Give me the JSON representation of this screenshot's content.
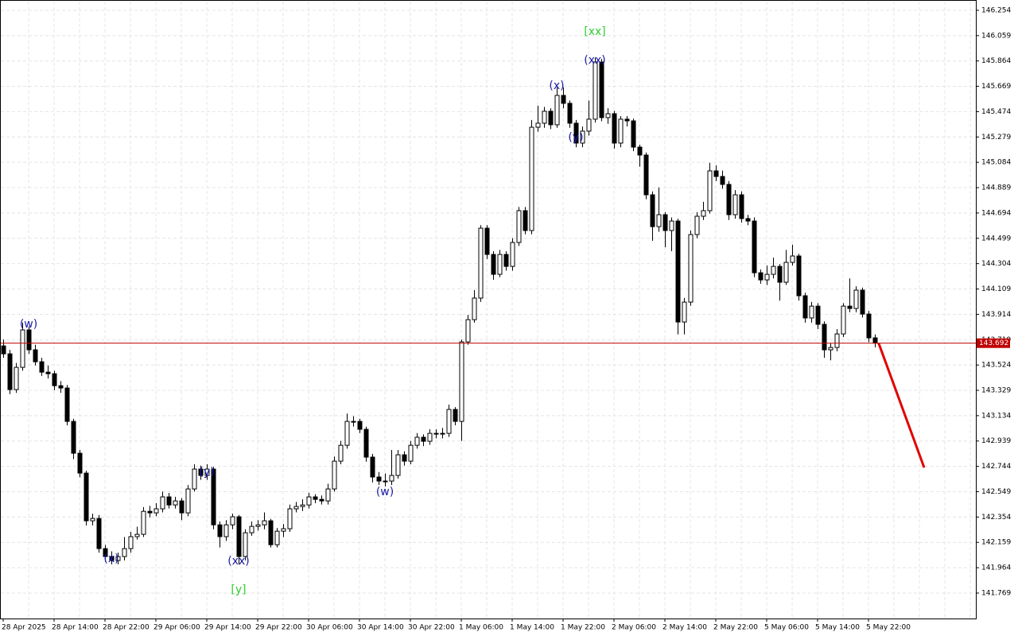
{
  "chart_data": {
    "type": "candlestick",
    "categories": [
      "28 Apr 2025",
      null,
      null,
      null,
      null,
      null,
      null,
      null,
      "28 Apr 14:00",
      null,
      null,
      null,
      null,
      null,
      null,
      null,
      "28 Apr 22:00",
      null,
      null,
      null,
      null,
      null,
      null,
      null,
      "29 Apr 06:00",
      null,
      null,
      null,
      null,
      null,
      null,
      null,
      "29 Apr 14:00",
      null,
      null,
      null,
      null,
      null,
      null,
      null,
      "29 Apr 22:00",
      null,
      null,
      null,
      null,
      null,
      null,
      null,
      "30 Apr 06:00",
      null,
      null,
      null,
      null,
      null,
      null,
      null,
      "30 Apr 14:00",
      null,
      null,
      null,
      null,
      null,
      null,
      null,
      "30 Apr 22:00",
      null,
      null,
      null,
      null,
      null,
      null,
      null,
      "1 May 06:00",
      null,
      null,
      null,
      null,
      null,
      null,
      null,
      "1 May 14:00",
      null,
      null,
      null,
      null,
      null,
      null,
      null,
      "1 May 22:00",
      null,
      null,
      null,
      null,
      null,
      null,
      null,
      "2 May 06:00",
      null,
      null,
      null,
      null,
      null,
      null,
      null,
      "2 May 14:00",
      null,
      null,
      null,
      null,
      null,
      null,
      null,
      "2 May 22:00",
      null,
      null,
      null,
      null,
      null,
      null,
      null,
      "5 May 06:00",
      null,
      null,
      null,
      null,
      null,
      null,
      null,
      "5 May 14:00",
      null,
      null,
      null,
      null,
      null,
      null,
      null,
      "5 May 22:00",
      null
    ],
    "open": [
      143.671,
      143.61,
      143.335,
      143.506,
      143.794,
      143.641,
      143.549,
      143.469,
      143.457,
      143.365,
      143.347,
      143.09,
      142.845,
      142.692,
      142.325,
      142.343,
      142.111,
      142.05,
      142.019,
      142.05,
      142.111,
      142.203,
      142.221,
      142.398,
      142.386,
      142.417,
      142.509,
      142.447,
      142.478,
      142.386,
      142.57,
      142.723,
      142.674,
      142.723,
      142.294,
      142.203,
      142.294,
      142.356,
      142.05,
      142.233,
      142.282,
      142.294,
      142.325,
      142.141,
      142.245,
      142.264,
      142.417,
      142.435,
      142.447,
      142.509,
      142.49,
      142.478,
      142.57,
      142.784,
      142.906,
      143.09,
      143.09,
      143.029,
      142.815,
      142.662,
      142.631,
      142.631,
      142.674,
      142.833,
      142.784,
      142.906,
      142.968,
      142.937,
      142.998,
      142.998,
      142.998,
      143.182,
      143.09,
      143.702,
      143.873,
      144.039,
      144.577,
      144.375,
      144.222,
      144.375,
      144.283,
      144.467,
      144.712,
      144.559,
      145.354,
      145.385,
      145.477,
      145.373,
      145.599,
      145.538,
      145.385,
      145.232,
      145.324,
      145.416,
      145.856,
      145.428,
      145.458,
      145.232,
      145.416,
      145.403,
      145.201,
      145.14,
      144.834,
      144.589,
      144.681,
      144.559,
      144.632,
      143.855,
      144.008,
      144.528,
      144.669,
      144.712,
      145.018,
      144.975,
      144.914,
      144.681,
      144.834,
      144.651,
      144.632,
      144.234,
      144.179,
      144.222,
      144.283,
      144.161,
      144.314,
      144.363,
      144.057,
      143.886,
      143.977,
      143.837,
      143.641,
      143.659,
      143.763,
      143.977,
      143.959,
      144.1,
      143.916,
      143.733
    ],
    "high": [
      143.72,
      143.64,
      143.54,
      143.85,
      143.82,
      143.68,
      143.58,
      143.52,
      143.48,
      143.4,
      143.37,
      143.11,
      142.87,
      142.71,
      142.38,
      142.37,
      142.14,
      142.09,
      142.08,
      142.2,
      142.24,
      142.28,
      142.43,
      142.44,
      142.46,
      142.55,
      142.54,
      142.51,
      142.5,
      142.6,
      142.76,
      142.75,
      142.76,
      142.74,
      142.32,
      142.33,
      142.38,
      142.37,
      142.26,
      142.32,
      142.33,
      142.39,
      142.34,
      142.27,
      142.3,
      142.45,
      142.47,
      142.49,
      142.54,
      142.53,
      142.52,
      142.61,
      142.82,
      142.94,
      143.15,
      143.13,
      143.11,
      143.05,
      142.84,
      142.7,
      142.69,
      142.87,
      142.87,
      142.86,
      142.94,
      143.0,
      142.99,
      143.03,
      143.03,
      143.04,
      143.22,
      143.2,
      143.72,
      143.91,
      144.1,
      144.6,
      144.6,
      144.4,
      144.41,
      144.4,
      144.5,
      144.74,
      144.74,
      145.41,
      145.52,
      145.51,
      145.5,
      145.66,
      145.66,
      145.56,
      145.41,
      145.36,
      145.56,
      145.89,
      145.88,
      145.5,
      145.48,
      145.44,
      145.44,
      145.42,
      145.22,
      145.16,
      144.86,
      144.89,
      144.7,
      144.66,
      144.65,
      144.04,
      144.56,
      144.7,
      144.78,
      145.08,
      145.06,
      145.02,
      144.94,
      144.87,
      144.86,
      144.68,
      144.66,
      144.26,
      144.29,
      144.35,
      144.3,
      144.41,
      144.45,
      144.38,
      144.08,
      144.01,
      144.0,
      143.86,
      143.69,
      143.8,
      144.0,
      144.19,
      144.13,
      144.12,
      143.94,
      143.76
    ],
    "low": [
      143.58,
      143.3,
      143.31,
      143.48,
      143.61,
      143.52,
      143.44,
      143.42,
      143.33,
      143.31,
      143.06,
      142.8,
      142.66,
      142.29,
      142.29,
      142.08,
      142.01,
      141.99,
      141.99,
      142.02,
      142.08,
      142.18,
      142.2,
      142.35,
      142.36,
      142.39,
      142.42,
      142.42,
      142.33,
      142.36,
      142.55,
      142.64,
      142.64,
      142.26,
      142.12,
      142.17,
      142.26,
      141.99,
      142.02,
      142.21,
      142.25,
      142.26,
      142.12,
      142.12,
      142.2,
      142.24,
      142.39,
      142.4,
      142.42,
      142.46,
      142.45,
      142.45,
      142.55,
      142.76,
      142.88,
      143.05,
      143.0,
      142.78,
      142.62,
      142.6,
      142.59,
      142.6,
      142.65,
      142.75,
      142.76,
      142.88,
      142.9,
      142.91,
      142.96,
      142.96,
      142.97,
      143.06,
      142.94,
      143.68,
      143.85,
      144.01,
      144.34,
      144.18,
      144.2,
      144.25,
      144.25,
      144.44,
      144.53,
      144.53,
      145.32,
      145.35,
      145.34,
      145.35,
      145.5,
      145.35,
      145.2,
      145.2,
      145.29,
      145.39,
      145.4,
      145.38,
      145.19,
      145.2,
      145.36,
      145.17,
      145.05,
      144.8,
      144.48,
      144.55,
      144.43,
      144.4,
      143.76,
      143.76,
      143.98,
      144.5,
      144.64,
      144.69,
      144.94,
      144.88,
      144.64,
      144.65,
      144.62,
      144.6,
      144.2,
      144.15,
      144.14,
      144.19,
      144.02,
      144.14,
      144.29,
      144.02,
      143.85,
      143.85,
      143.8,
      143.58,
      143.56,
      143.63,
      143.74,
      143.93,
      143.93,
      143.89,
      143.7,
      143.66
    ],
    "close": [
      143.61,
      143.335,
      143.506,
      143.794,
      143.641,
      143.549,
      143.469,
      143.457,
      143.365,
      143.347,
      143.09,
      142.845,
      142.692,
      142.325,
      142.343,
      142.111,
      142.05,
      142.019,
      142.05,
      142.111,
      142.203,
      142.221,
      142.398,
      142.386,
      142.417,
      142.509,
      142.447,
      142.478,
      142.386,
      142.57,
      142.723,
      142.674,
      142.723,
      142.294,
      142.203,
      142.294,
      142.356,
      142.05,
      142.233,
      142.282,
      142.294,
      142.325,
      142.141,
      142.245,
      142.264,
      142.417,
      142.435,
      142.447,
      142.509,
      142.49,
      142.478,
      142.57,
      142.784,
      142.906,
      143.09,
      143.09,
      143.029,
      142.815,
      142.662,
      142.631,
      142.631,
      142.674,
      142.833,
      142.784,
      142.906,
      142.968,
      142.937,
      142.998,
      142.998,
      142.998,
      143.182,
      143.09,
      143.702,
      143.873,
      144.039,
      144.577,
      144.375,
      144.222,
      144.375,
      144.283,
      144.467,
      144.712,
      144.559,
      145.354,
      145.385,
      145.477,
      145.373,
      145.599,
      145.538,
      145.385,
      145.232,
      145.324,
      145.416,
      145.856,
      145.428,
      145.458,
      145.232,
      145.416,
      145.403,
      145.201,
      145.14,
      144.834,
      144.589,
      144.681,
      144.559,
      144.632,
      143.855,
      144.008,
      144.528,
      144.669,
      144.712,
      145.018,
      144.975,
      144.914,
      144.681,
      144.834,
      144.651,
      144.632,
      144.234,
      144.179,
      144.222,
      144.283,
      144.161,
      144.314,
      144.363,
      144.057,
      143.886,
      143.977,
      143.837,
      143.641,
      143.659,
      143.763,
      143.977,
      143.959,
      144.1,
      143.916,
      143.733,
      143.692
    ],
    "ylim": [
      141.573,
      146.321
    ],
    "yticks": [
      146.254,
      146.059,
      145.864,
      145.669,
      145.474,
      145.279,
      145.084,
      144.889,
      144.694,
      144.499,
      144.304,
      144.109,
      143.914,
      143.719,
      143.524,
      143.329,
      143.134,
      142.939,
      142.744,
      142.549,
      142.354,
      142.159,
      141.964,
      141.769
    ],
    "grid": true,
    "price_line": 143.692,
    "price_line_color": "#c00000",
    "up_color": "#ffffff",
    "down_color": "#000000",
    "annotations": [
      {
        "text": "(w)",
        "bar": 4,
        "price": 143.837,
        "color": "#1a1aa6"
      },
      {
        "text": "(x)",
        "bar": 17,
        "price": 142.031,
        "color": "#1a1aa6"
      },
      {
        "text": "(y)",
        "bar": 32,
        "price": 142.698,
        "color": "#1a1aa6"
      },
      {
        "text": "(xx)",
        "bar": 37,
        "price": 142.013,
        "color": "#1a1aa6"
      },
      {
        "text": "[y]",
        "bar": 37,
        "price": 141.793,
        "color": "#32cd32"
      },
      {
        "text": "(w)",
        "bar": 60,
        "price": 142.545,
        "color": "#1a1aa6"
      },
      {
        "text": "(x)",
        "bar": 87,
        "price": 145.673,
        "color": "#1a1aa6"
      },
      {
        "text": "(y)",
        "bar": 90,
        "price": 145.275,
        "color": "#1a1aa6"
      },
      {
        "text": "(xx)",
        "bar": 93,
        "price": 145.868,
        "color": "#1a1aa6"
      },
      {
        "text": "[xx]",
        "bar": 93,
        "price": 146.089,
        "color": "#32cd32"
      }
    ],
    "forecast": {
      "bar": [
        137.6,
        144.75
      ],
      "price": [
        143.692,
        142.735
      ],
      "color": "#e00000"
    }
  }
}
